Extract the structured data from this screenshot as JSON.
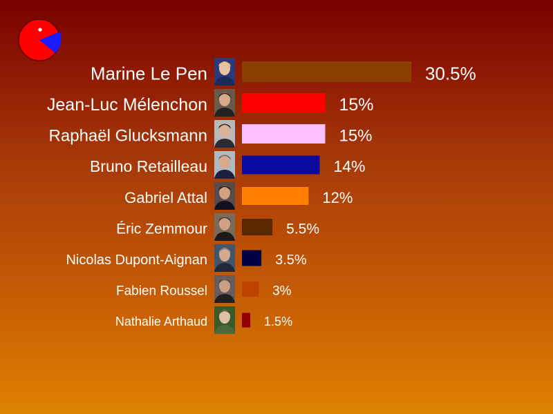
{
  "logo": {
    "colors": {
      "body": "#ff0000",
      "slice": "#1a1aff",
      "eye": "#ffffff",
      "outline": "#5a0000"
    }
  },
  "chart_data": {
    "type": "bar",
    "orientation": "horizontal",
    "title": "",
    "xlabel": "",
    "ylabel": "",
    "value_suffix": "%",
    "xlim": [
      0,
      30.5
    ],
    "grid": false,
    "legend": "none",
    "categories": [
      "Marine Le Pen",
      "Jean-Luc Mélenchon",
      "Raphaël Glucksmann",
      "Bruno Retailleau",
      "Gabriel Attal",
      "Éric Zemmour",
      "Nicolas Dupont-Aignan",
      "Fabien Roussel",
      "Nathalie Arthaud"
    ],
    "values": [
      30.5,
      15,
      15,
      14,
      12,
      5.5,
      3.5,
      3,
      1.5
    ],
    "value_labels": [
      "30.5%",
      "15%",
      "15%",
      "14%",
      "12%",
      "5.5%",
      "3.5%",
      "3%",
      "1.5%"
    ],
    "colors": [
      "#8b3f00",
      "#ff0000",
      "#ffc0ff",
      "#0a0aa0",
      "#ff8000",
      "#5a2800",
      "#000040",
      "#c04000",
      "#900000"
    ]
  }
}
